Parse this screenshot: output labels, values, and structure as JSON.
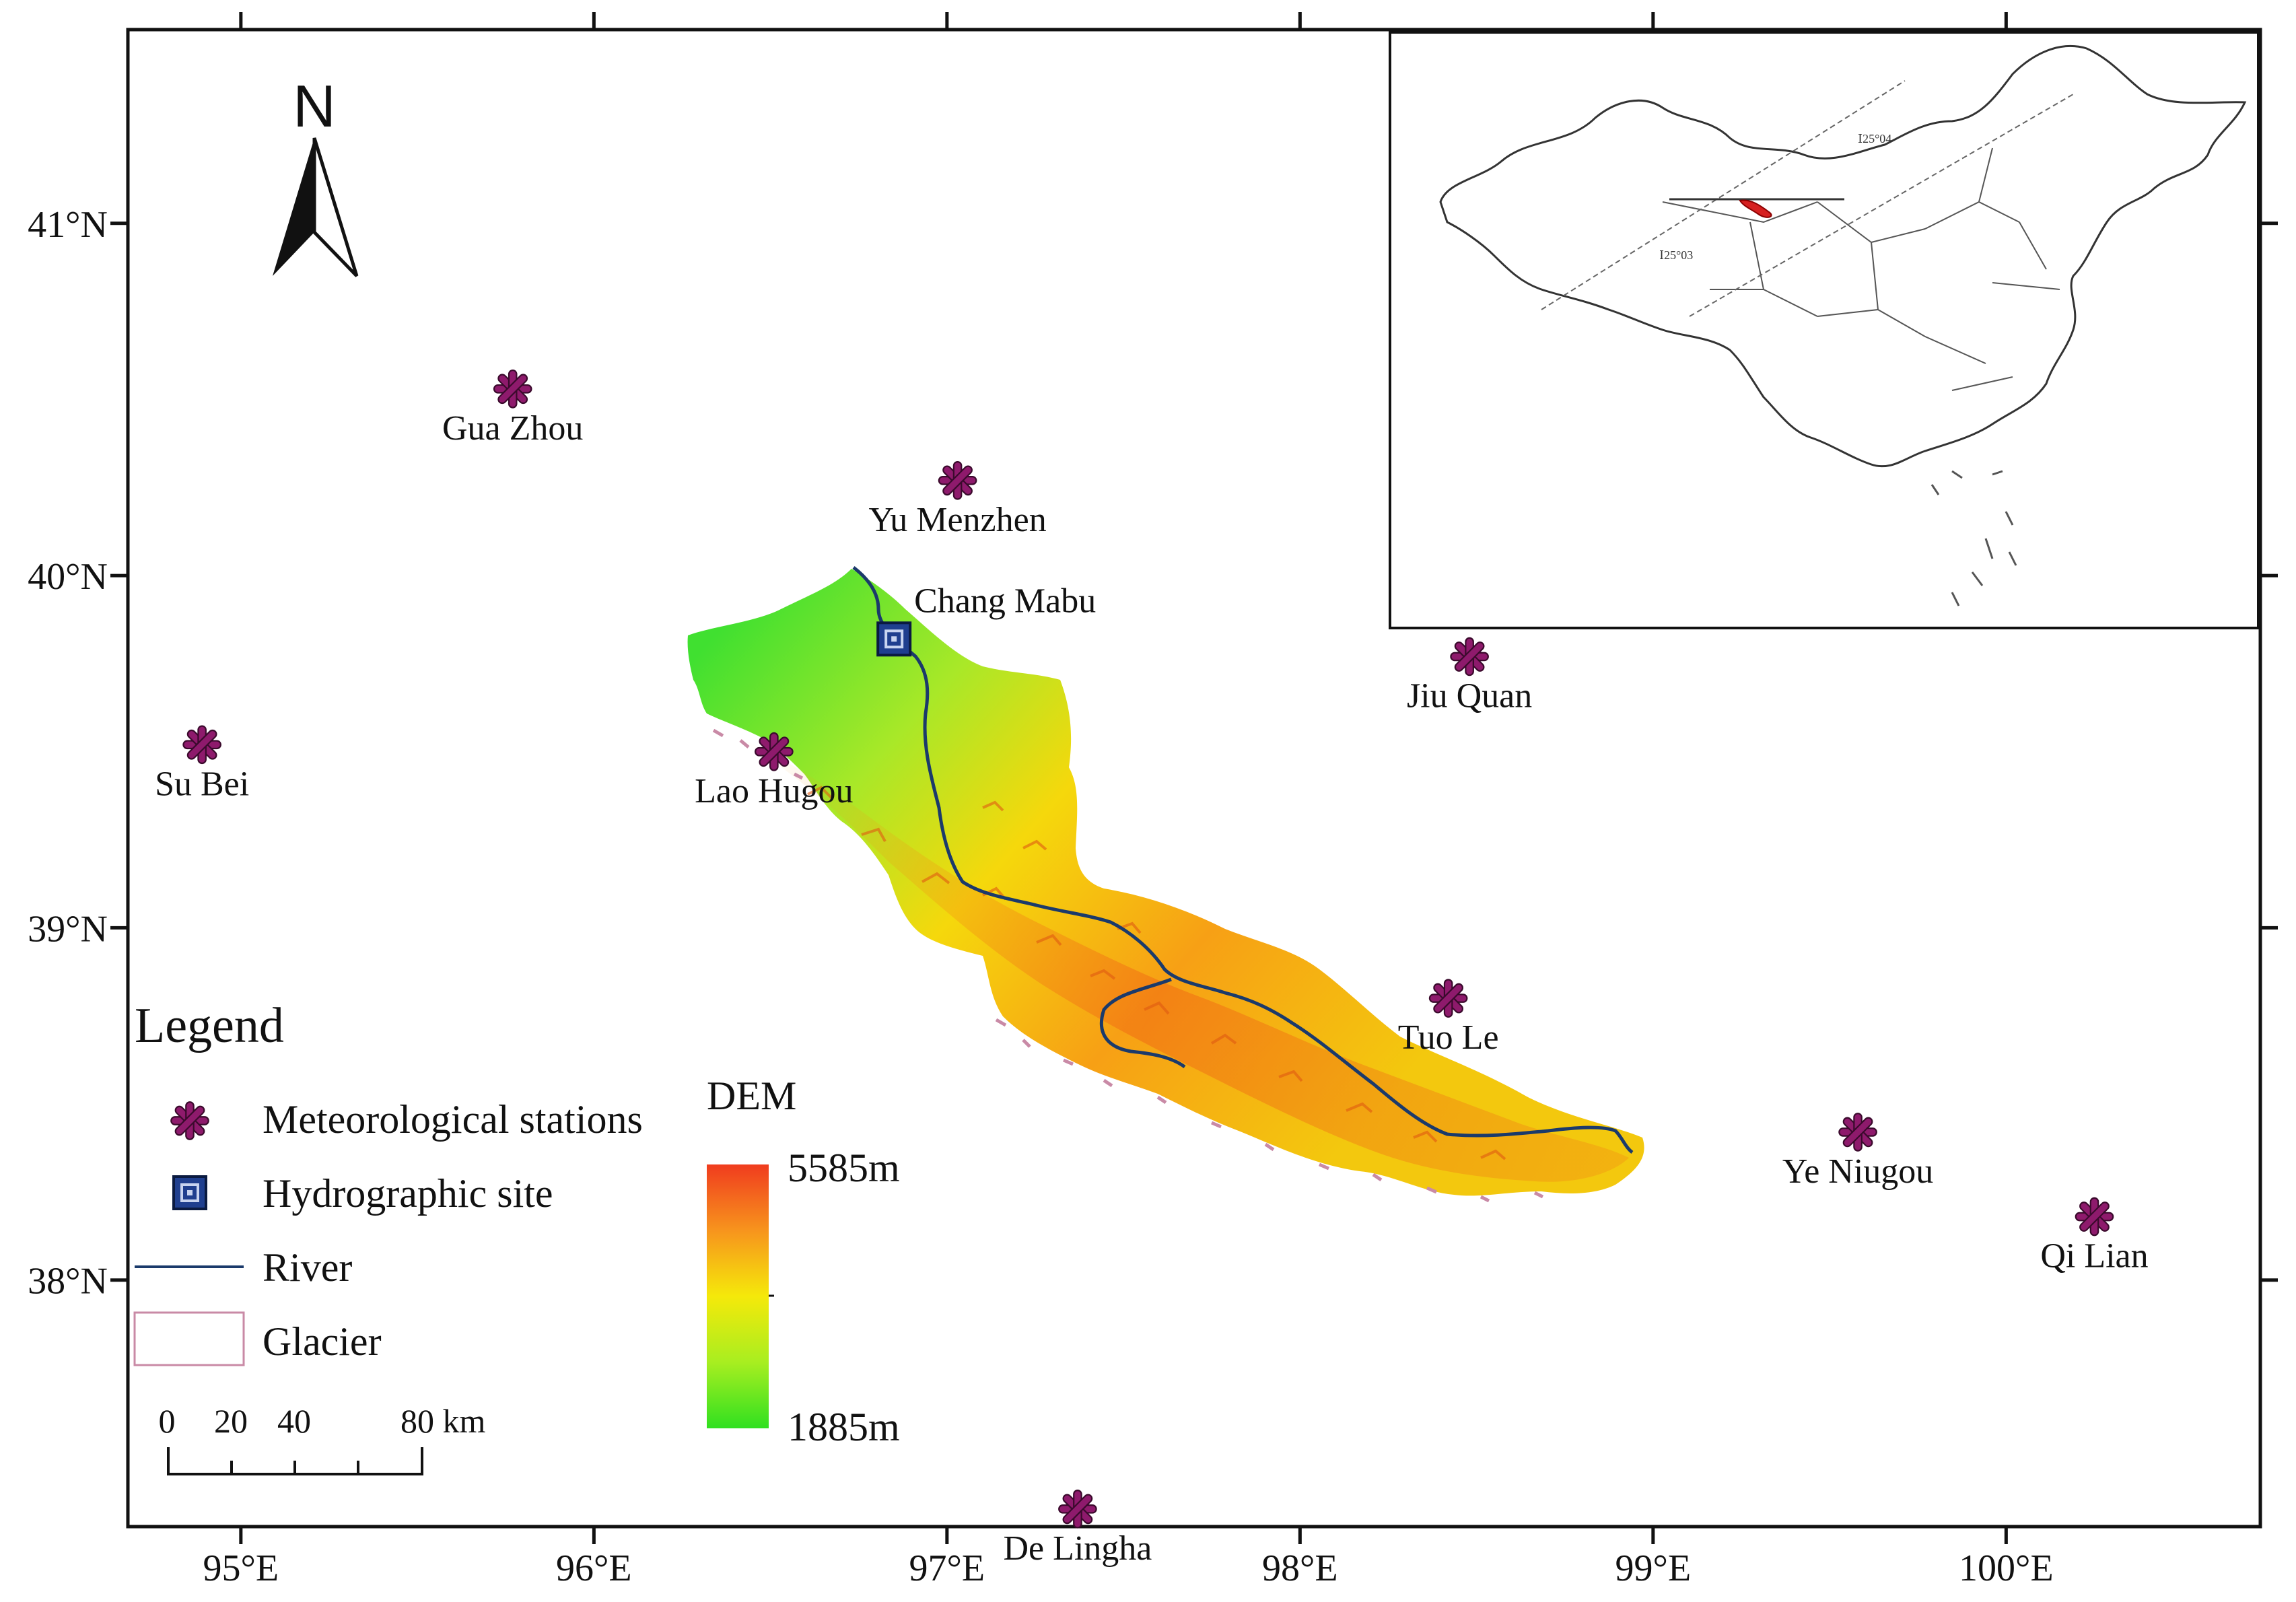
{
  "map": {
    "north_label": "N",
    "lon_ticks": [
      "95°E",
      "96°E",
      "97°E",
      "98°E",
      "99°E",
      "100°E"
    ],
    "lat_ticks": [
      "41°N",
      "40°N",
      "39°N",
      "38°N"
    ],
    "extent": {
      "lon_min": 94.68,
      "lon_max": 100.72,
      "lat_min": 37.3,
      "lat_max": 41.55
    }
  },
  "stations": [
    {
      "name": "Gua Zhou",
      "lon": 95.77,
      "lat": 40.53
    },
    {
      "name": "Yu Menzhen",
      "lon": 97.03,
      "lat": 40.27
    },
    {
      "name": "Su Bei",
      "lon": 94.89,
      "lat": 39.52
    },
    {
      "name": "Lao Hugou",
      "lon": 96.51,
      "lat": 39.5
    },
    {
      "name": "Jiu Quan",
      "lon": 98.48,
      "lat": 39.77
    },
    {
      "name": "Tuo Le",
      "lon": 98.42,
      "lat": 38.8
    },
    {
      "name": "Ye Niugou",
      "lon": 99.58,
      "lat": 38.42
    },
    {
      "name": "Qi Lian",
      "lon": 100.25,
      "lat": 38.18
    },
    {
      "name": "De Lingha",
      "lon": 97.37,
      "lat": 37.35
    }
  ],
  "hydro_site": {
    "name": "Chang Mabu",
    "lon": 96.85,
    "lat": 39.82
  },
  "legend": {
    "title": "Legend",
    "items": {
      "stations": "Meteorological stations",
      "hydro": "Hydrographic site",
      "river": "River",
      "glacier": "Glacier"
    },
    "dem_title": "DEM",
    "dem_max": "5585m",
    "dem_min": "1885m"
  },
  "scale_bar": {
    "labels": [
      "0",
      "20",
      "40",
      "80 km"
    ]
  },
  "inset": {
    "labels": [
      "Ⅰ25°04",
      "Ⅰ25°03"
    ]
  },
  "colors": {
    "station": "#8e1a6c",
    "hydro_fill": "#1f3f8f",
    "river": "#1b3a6b",
    "glacier": "#c98aa6",
    "dem_high": "#f03c1e",
    "dem_mid": "#f5e90a",
    "dem_low": "#30e020",
    "inset_region": "#d62020"
  }
}
